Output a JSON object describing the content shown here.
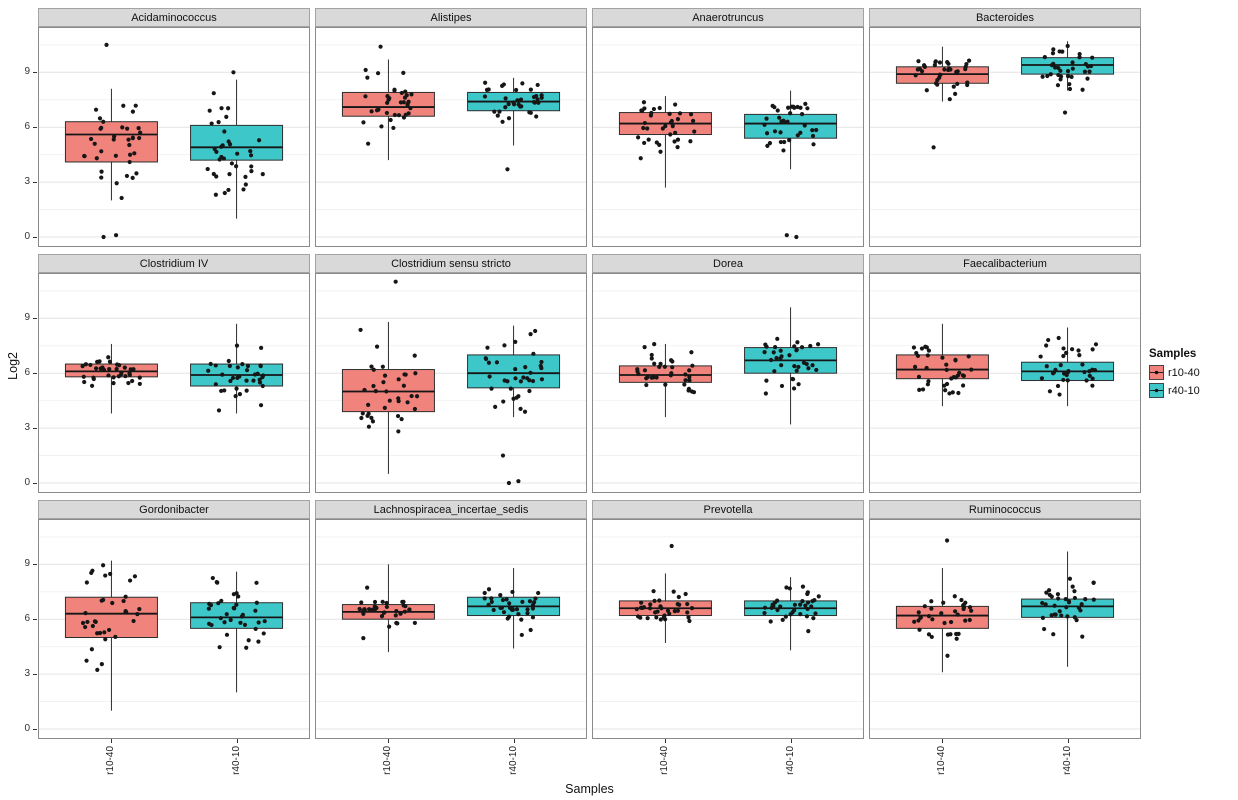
{
  "chart_data": {
    "type": "boxplot",
    "title": "",
    "xlabel": "Samples",
    "ylabel": "Log2",
    "yticks": [
      0,
      3,
      6,
      9
    ],
    "ylim": [
      -0.3,
      11.5
    ],
    "x_tick_labels": [
      "r10-40",
      "r40-10"
    ],
    "legend": {
      "title": "Samples",
      "entries": [
        "r10-40",
        "r40-10"
      ],
      "position": "right"
    },
    "series": [
      {
        "name": "r10-40",
        "color": "#F0837C"
      },
      {
        "name": "r40-10",
        "color": "#3EC7C9"
      }
    ],
    "colors": {
      "strip_bg": "#D9D9D9",
      "strip_border": "#A3A3A3",
      "panel_border": "#8A8A8A",
      "grid_major": "#E4E4E4",
      "grid_minor": "#F2F2F2",
      "point": "#161616"
    },
    "points_per_group": 36,
    "panels": [
      {
        "title": "Acidaminococcus",
        "groups": [
          {
            "sample": "r10-40",
            "min": 2.0,
            "q1": 4.1,
            "median": 5.6,
            "q3": 6.3,
            "max": 8.1,
            "outliers": [
              0,
              0.1,
              10.5
            ]
          },
          {
            "sample": "r40-10",
            "min": 1.0,
            "q1": 4.2,
            "median": 4.9,
            "q3": 6.1,
            "max": 8.6,
            "outliers": [
              9.0
            ]
          }
        ]
      },
      {
        "title": "Alistipes",
        "groups": [
          {
            "sample": "r10-40",
            "min": 4.2,
            "q1": 6.6,
            "median": 7.1,
            "q3": 7.9,
            "max": 9.7,
            "outliers": [
              10.4
            ]
          },
          {
            "sample": "r40-10",
            "min": 5.0,
            "q1": 6.9,
            "median": 7.4,
            "q3": 7.9,
            "max": 8.7,
            "outliers": [
              3.7
            ]
          }
        ]
      },
      {
        "title": "Anaerotruncus",
        "groups": [
          {
            "sample": "r10-40",
            "min": 2.7,
            "q1": 5.6,
            "median": 6.2,
            "q3": 6.8,
            "max": 7.7,
            "outliers": []
          },
          {
            "sample": "r40-10",
            "min": 3.7,
            "q1": 5.4,
            "median": 6.2,
            "q3": 6.7,
            "max": 8.0,
            "outliers": [
              0,
              0.1
            ]
          }
        ]
      },
      {
        "title": "Bacteroides",
        "groups": [
          {
            "sample": "r10-40",
            "min": 7.4,
            "q1": 8.4,
            "median": 8.9,
            "q3": 9.3,
            "max": 10.4,
            "outliers": [
              4.9
            ]
          },
          {
            "sample": "r40-10",
            "min": 8.0,
            "q1": 8.9,
            "median": 9.4,
            "q3": 9.8,
            "max": 10.7,
            "outliers": [
              6.8
            ]
          }
        ]
      },
      {
        "title": "Clostridium IV",
        "groups": [
          {
            "sample": "r10-40",
            "min": 3.8,
            "q1": 5.8,
            "median": 6.1,
            "q3": 6.5,
            "max": 7.6,
            "outliers": []
          },
          {
            "sample": "r40-10",
            "min": 3.8,
            "q1": 5.3,
            "median": 5.9,
            "q3": 6.5,
            "max": 8.7,
            "outliers": []
          }
        ]
      },
      {
        "title": "Clostridium sensu stricto",
        "groups": [
          {
            "sample": "r10-40",
            "min": 0.5,
            "q1": 3.9,
            "median": 5.0,
            "q3": 6.2,
            "max": 8.8,
            "outliers": [
              11.0
            ]
          },
          {
            "sample": "r40-10",
            "min": 3.6,
            "q1": 5.2,
            "median": 6.0,
            "q3": 7.0,
            "max": 8.6,
            "outliers": [
              0,
              0.1,
              1.5
            ]
          }
        ]
      },
      {
        "title": "Dorea",
        "groups": [
          {
            "sample": "r10-40",
            "min": 3.6,
            "q1": 5.5,
            "median": 5.9,
            "q3": 6.4,
            "max": 7.6,
            "outliers": []
          },
          {
            "sample": "r40-10",
            "min": 3.2,
            "q1": 6.0,
            "median": 6.7,
            "q3": 7.4,
            "max": 9.6,
            "outliers": []
          }
        ]
      },
      {
        "title": "Faecalibacterium",
        "groups": [
          {
            "sample": "r10-40",
            "min": 4.2,
            "q1": 5.7,
            "median": 6.2,
            "q3": 7.0,
            "max": 8.7,
            "outliers": []
          },
          {
            "sample": "r40-10",
            "min": 4.2,
            "q1": 5.6,
            "median": 6.1,
            "q3": 6.6,
            "max": 8.5,
            "outliers": []
          }
        ]
      },
      {
        "title": "Gordonibacter",
        "groups": [
          {
            "sample": "r10-40",
            "min": 1.0,
            "q1": 5.0,
            "median": 6.3,
            "q3": 7.2,
            "max": 9.2,
            "outliers": []
          },
          {
            "sample": "r40-10",
            "min": 2.0,
            "q1": 5.5,
            "median": 6.1,
            "q3": 6.9,
            "max": 8.6,
            "outliers": []
          }
        ]
      },
      {
        "title": "Lachnospiracea_incertae_sedis",
        "groups": [
          {
            "sample": "r10-40",
            "min": 4.2,
            "q1": 6.0,
            "median": 6.4,
            "q3": 6.8,
            "max": 9.0,
            "outliers": []
          },
          {
            "sample": "r40-10",
            "min": 4.4,
            "q1": 6.2,
            "median": 6.7,
            "q3": 7.2,
            "max": 8.8,
            "outliers": []
          }
        ]
      },
      {
        "title": "Prevotella",
        "groups": [
          {
            "sample": "r10-40",
            "min": 4.7,
            "q1": 6.2,
            "median": 6.6,
            "q3": 7.0,
            "max": 8.5,
            "outliers": [
              10.0
            ]
          },
          {
            "sample": "r40-10",
            "min": 4.3,
            "q1": 6.2,
            "median": 6.6,
            "q3": 7.0,
            "max": 8.3,
            "outliers": []
          }
        ]
      },
      {
        "title": "Ruminococcus",
        "groups": [
          {
            "sample": "r10-40",
            "min": 3.1,
            "q1": 5.5,
            "median": 6.2,
            "q3": 6.7,
            "max": 8.8,
            "outliers": [
              10.3
            ]
          },
          {
            "sample": "r40-10",
            "min": 3.4,
            "q1": 6.1,
            "median": 6.7,
            "q3": 7.1,
            "max": 9.7,
            "outliers": []
          }
        ]
      }
    ]
  }
}
